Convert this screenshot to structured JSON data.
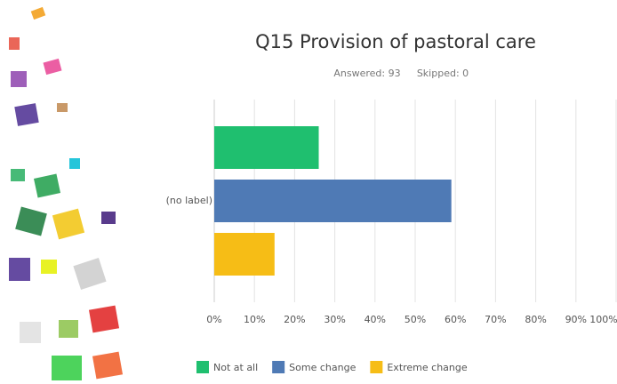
{
  "chart_data": {
    "type": "bar",
    "orientation": "horizontal",
    "title": "Q15 Provision of pastoral care",
    "answered": "Answered: 93",
    "skipped": "Skipped: 0",
    "categories": [
      "(no label)"
    ],
    "series": [
      {
        "name": "Not at all",
        "color": "#1fbf6f",
        "values": [
          26
        ]
      },
      {
        "name": "Some change",
        "color": "#4f7ab5",
        "values": [
          59
        ]
      },
      {
        "name": "Extreme change",
        "color": "#f6bd16",
        "values": [
          15
        ]
      }
    ],
    "xlim": [
      0,
      100
    ],
    "xticks": [
      {
        "value": 0,
        "label": "0%"
      },
      {
        "value": 10,
        "label": "10%"
      },
      {
        "value": 20,
        "label": "20%"
      },
      {
        "value": 30,
        "label": "30%"
      },
      {
        "value": 40,
        "label": "40%"
      },
      {
        "value": 50,
        "label": "50%"
      },
      {
        "value": 60,
        "label": "60%"
      },
      {
        "value": 70,
        "label": "70%"
      },
      {
        "value": 80,
        "label": "80%"
      },
      {
        "value": 90,
        "label": "90%"
      },
      {
        "value": 100,
        "label": "100%"
      }
    ],
    "grid": true
  }
}
